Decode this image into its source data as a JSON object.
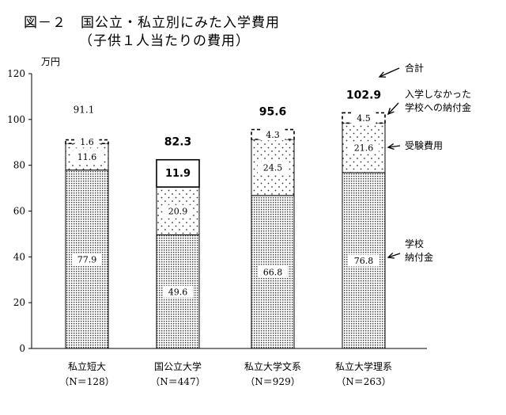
{
  "title": "図－２　国公立・私立別にみた入学費用",
  "subtitle": "（子供１人当たりの費用）",
  "chart_data": {
    "type": "bar",
    "stacked": true,
    "yunit": "万円",
    "ylim": [
      0,
      120
    ],
    "yticks": [
      0,
      20,
      40,
      60,
      80,
      100,
      120
    ],
    "categories": [
      {
        "name": "私立短大",
        "n": "（N＝128）"
      },
      {
        "name": "国公立大学",
        "n": "（N＝447）"
      },
      {
        "name": "私立大学文系",
        "n": "（N＝929）"
      },
      {
        "name": "私立大学理系",
        "n": "（N＝263）"
      }
    ],
    "series": [
      {
        "name": "学校\n納付金",
        "pattern": "dense-dots",
        "values": [
          77.9,
          49.6,
          66.8,
          76.8
        ],
        "labels": [
          "77.9",
          "49.6",
          "66.8",
          "76.8"
        ]
      },
      {
        "name": "受験費用",
        "pattern": "sparse-dots",
        "values": [
          11.6,
          20.9,
          24.5,
          21.6
        ],
        "labels": [
          "11.6",
          "20.9",
          "24.5",
          "21.6"
        ]
      },
      {
        "name": "入学しなかった\n学校への納付金",
        "pattern": "white",
        "values": [
          1.6,
          11.9,
          4.3,
          4.5
        ],
        "labels": [
          "1.6",
          "11.9",
          "4.3",
          "4.5"
        ]
      }
    ],
    "totals": [
      "91.1",
      "82.3",
      "95.6",
      "102.9"
    ],
    "total_label": "合計"
  }
}
